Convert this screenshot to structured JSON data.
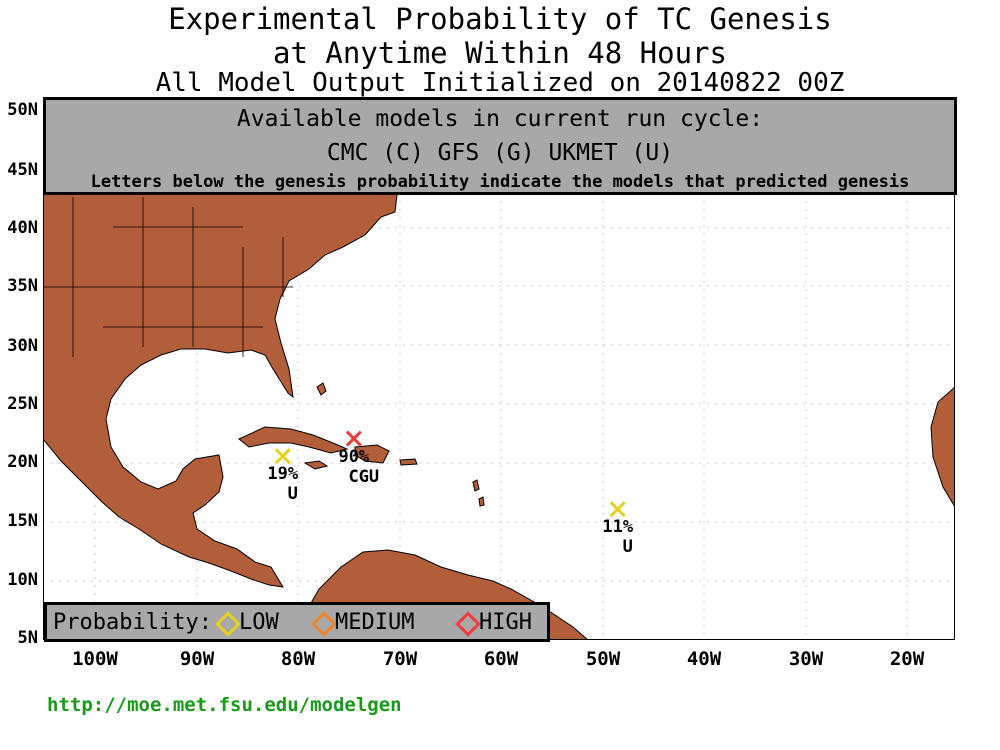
{
  "title": {
    "line1": "Experimental Probability of TC Genesis",
    "line2": "at Anytime Within 48 Hours",
    "line3": "All Model Output Initialized on 20140822 00Z"
  },
  "models_box": {
    "title": "Available models in current run cycle:",
    "models": "CMC (C) GFS (G)  UKMET (U)",
    "note": "Letters below the genesis probability indicate the models that predicted genesis"
  },
  "axes": {
    "lat_labels": [
      "50N",
      "45N",
      "40N",
      "35N",
      "30N",
      "25N",
      "20N",
      "15N",
      "10N",
      "5N"
    ],
    "lon_labels": [
      "100W",
      "90W",
      "80W",
      "70W",
      "60W",
      "50W",
      "40W",
      "30W",
      "20W"
    ]
  },
  "legend": {
    "label": "Probability:",
    "items": [
      {
        "label": "LOW",
        "color": "#e6d21e"
      },
      {
        "label": "MEDIUM",
        "color": "#f08228"
      },
      {
        "label": "HIGH",
        "color": "#f03c3c"
      }
    ]
  },
  "genesis_points": [
    {
      "lon": -81.5,
      "lat": 20.5,
      "prob": "19%",
      "models": "U",
      "level": "LOW",
      "color": "#e6d21e"
    },
    {
      "lon": -74.5,
      "lat": 22.0,
      "prob": "90%",
      "models": "CGU",
      "level": "HIGH",
      "color": "#f03c3c"
    },
    {
      "lon": -48.5,
      "lat": 16.0,
      "prob": "11%",
      "models": "U",
      "level": "LOW",
      "color": "#e6d21e"
    }
  ],
  "colors": {
    "land": "#b35e3a",
    "ocean": "#ffffff",
    "box": "#a8a8a8",
    "url": "#1a9a1a"
  },
  "url_text": "http://moe.met.fsu.edu/modelgen"
}
